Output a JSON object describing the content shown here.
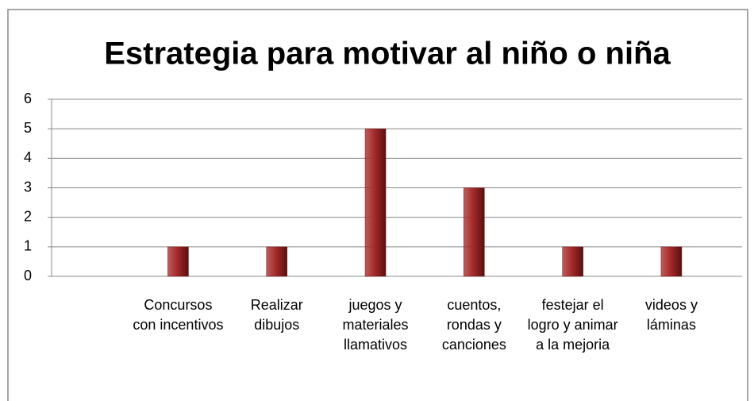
{
  "chart_data": {
    "type": "bar",
    "title": "Estrategia para motivar al niño o niña",
    "categories": [
      null,
      "Concursos con incentivos",
      "Realizar dibujos",
      "juegos y materiales llamativos",
      "cuentos, rondas y canciones",
      "festejar el logro y animar a la mejoria",
      "videos y láminas"
    ],
    "values": [
      null,
      1,
      1,
      5,
      3,
      1,
      1
    ],
    "color": "#a52a2a",
    "ylim": [
      0,
      6
    ],
    "yticks": [
      0,
      1,
      2,
      3,
      4,
      5,
      6
    ],
    "grid": true
  }
}
